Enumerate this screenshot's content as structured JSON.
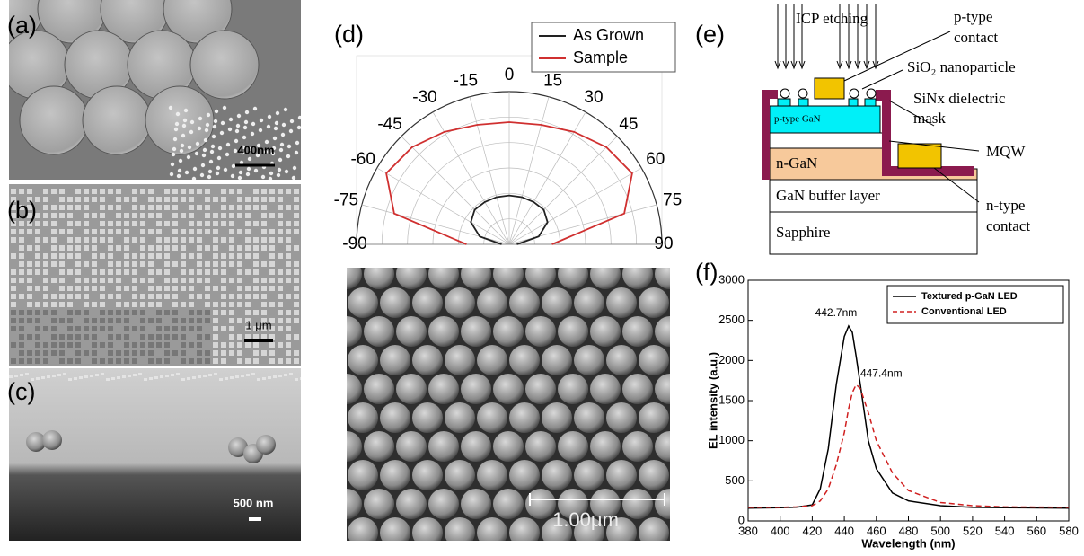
{
  "panels": {
    "a": {
      "label": "(a)",
      "scale_bar": "400nm"
    },
    "b": {
      "label": "(b)",
      "scale_bar": "1 μm"
    },
    "c": {
      "label": "(c)",
      "scale_bar": "500 nm"
    },
    "d": {
      "label": "(d)",
      "scale_bar": "1.00μm"
    },
    "e": {
      "label": "(e)"
    },
    "f": {
      "label": "(f)"
    }
  },
  "schematic": {
    "etching": "ICP etching",
    "p_contact": [
      "p-type",
      "contact"
    ],
    "nanoparticle": "SiO₂ nanoparticle",
    "mask": [
      "SiNx dielectric",
      "mask"
    ],
    "p_gan": "p-type GaN",
    "mqw": "MQW",
    "n_gan": "n-GaN",
    "buffer": "GaN buffer layer",
    "substrate": "Sapphire",
    "n_contact": [
      "n-type",
      "contact"
    ]
  },
  "chart_data": [
    {
      "type": "polar",
      "theta": [
        -90,
        -75,
        -60,
        -45,
        -30,
        -15,
        0,
        15,
        30,
        45,
        60,
        75,
        90
      ],
      "thetalim": [
        -90,
        90
      ],
      "thetaticks": [
        -90,
        -75,
        -60,
        -45,
        -30,
        -15,
        0,
        15,
        30,
        45,
        60,
        75,
        90
      ],
      "rlim": [
        0,
        1
      ],
      "legend": "upper right",
      "series": [
        {
          "name": "As Grown",
          "color": "#222222",
          "values": [
            0.05,
            0.2,
            0.29,
            0.32,
            0.32,
            0.32,
            0.32,
            0.32,
            0.32,
            0.32,
            0.29,
            0.2,
            0.05
          ]
        },
        {
          "name": "Sample",
          "color": "#d03030",
          "values": [
            0.28,
            0.78,
            0.93,
            0.9,
            0.85,
            0.81,
            0.8,
            0.81,
            0.85,
            0.9,
            0.93,
            0.78,
            0.28
          ]
        }
      ]
    },
    {
      "type": "line",
      "x": [
        380,
        400,
        410,
        420,
        425,
        430,
        435,
        440,
        442.7,
        445,
        447.4,
        450,
        455,
        460,
        470,
        480,
        500,
        520,
        540,
        580
      ],
      "xlim": [
        380,
        580
      ],
      "xticks": [
        380,
        400,
        420,
        440,
        460,
        480,
        500,
        520,
        540,
        560,
        580
      ],
      "ylim": [
        0,
        3000
      ],
      "yticks": [
        0,
        500,
        1000,
        1500,
        2000,
        2500,
        3000
      ],
      "xlabel": "Wavelength (nm)",
      "ylabel": "EL intensity (a.u.)",
      "legend": "upper right",
      "annotations": [
        "442.7nm",
        "447.4nm"
      ],
      "series": [
        {
          "name": "Textured p-GaN LED",
          "color": "#000000",
          "line_style": "solid",
          "values": [
            160,
            165,
            170,
            200,
            400,
            900,
            1700,
            2300,
            2430,
            2350,
            2050,
            1700,
            1000,
            650,
            350,
            250,
            190,
            170,
            165,
            160
          ]
        },
        {
          "name": "Conventional LED",
          "color": "#d02020",
          "line_style": "dashed",
          "values": [
            170,
            170,
            175,
            190,
            250,
            400,
            700,
            1100,
            1400,
            1600,
            1700,
            1650,
            1350,
            1000,
            600,
            380,
            230,
            190,
            175,
            170
          ]
        }
      ]
    }
  ]
}
